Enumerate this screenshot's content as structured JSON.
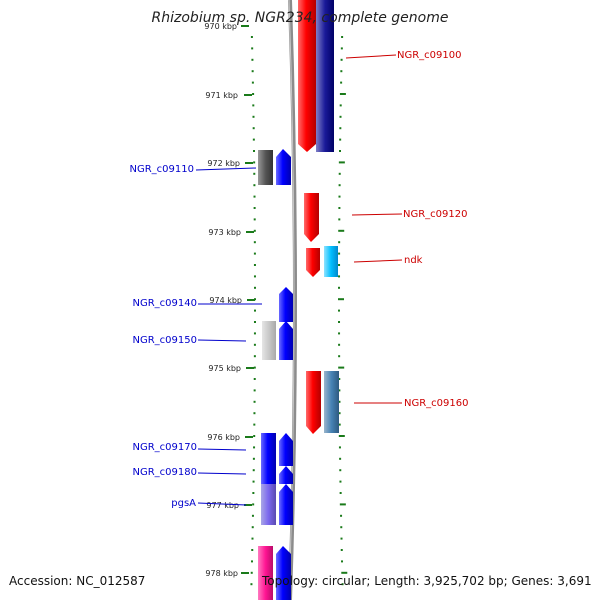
{
  "title": "Rhizobium sp. NGR234, complete genome",
  "accession": "Accession: NC_012587",
  "topology": "Topology: circular; Length: 3,925,702 bp; Genes: 3,691",
  "colors": {
    "forward_label": "#0000cc",
    "reverse_label": "#cc0000",
    "backbone": "#8c8c8c",
    "tick": "#1a7a1a"
  },
  "kbp_labels": [
    "970 kbp",
    "971 kbp",
    "972 kbp",
    "973 kbp",
    "974 kbp",
    "975 kbp",
    "976 kbp",
    "977 kbp",
    "978 kbp"
  ],
  "genes": {
    "NGR_c09100": "NGR_c09100",
    "NGR_c09110": "NGR_c09110",
    "NGR_c09120": "NGR_c09120",
    "ndk": "ndk",
    "NGR_c09140": "NGR_c09140",
    "NGR_c09150": "NGR_c09150",
    "NGR_c09160": "NGR_c09160",
    "NGR_c09170": "NGR_c09170",
    "NGR_c09180": "NGR_c09180",
    "pgsA": "pgsA"
  }
}
